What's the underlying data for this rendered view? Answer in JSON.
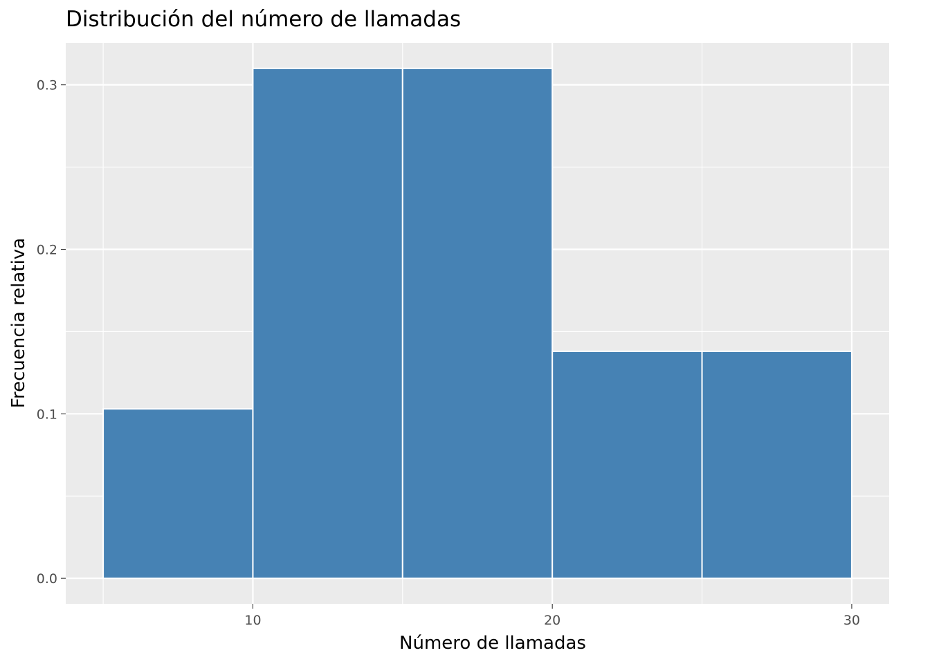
{
  "colors": {
    "panel_background": "#ebebeb",
    "grid": "#ffffff",
    "bar_fill": "#4682b4",
    "bar_outline": "#ffffff",
    "tick": "#333333",
    "tick_text": "#4d4d4d"
  },
  "chart_data": {
    "type": "bar",
    "subtype": "histogram",
    "title": "Distribución del número de llamadas",
    "xlabel": "Número de llamadas",
    "ylabel": "Frecuencia relativa",
    "bins": [
      {
        "x0": 5,
        "x1": 10,
        "value": 0.103
      },
      {
        "x0": 10,
        "x1": 15,
        "value": 0.31
      },
      {
        "x0": 15,
        "x1": 20,
        "value": 0.31
      },
      {
        "x0": 20,
        "x1": 25,
        "value": 0.138
      },
      {
        "x0": 25,
        "x1": 30,
        "value": 0.138
      }
    ],
    "xlim": [
      3.75,
      31.25
    ],
    "ylim": [
      -0.0155,
      0.3255
    ],
    "xticks": [
      10,
      20,
      30
    ],
    "xtick_labels": [
      "10",
      "20",
      "30"
    ],
    "yticks": [
      0,
      0.1,
      0.2,
      0.3
    ],
    "ytick_labels": [
      "0.0",
      "0.1",
      "0.2",
      "0.3"
    ],
    "grid": true,
    "legend": "none"
  }
}
